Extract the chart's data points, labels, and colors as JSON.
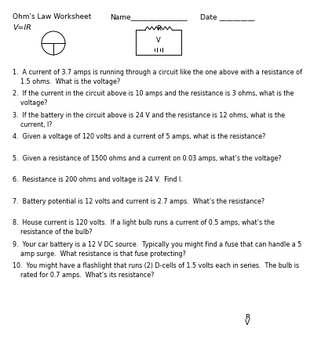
{
  "title": "Ohm's Law Worksheet",
  "name_label": "Name________________",
  "date_label": "Date __________",
  "formula": "V=IR",
  "bg_color": "#ffffff",
  "text_color": "#000000",
  "questions": [
    "1.  A current of 3.7 amps is running through a circuit like the one above with a resistance of\n    1.5 ohms.  What is the voltage?",
    "2.  If the current in the circuit above is 10 amps and the resistance is 3 ohms, what is the\n    voltage?",
    "3.  If the battery in the circuit above is 24 V and the resistance is 12 ohms, what is the\n    current, I?",
    "4.  Given a voltage of 120 volts and a current of 5 amps, what is the resistance?",
    "5.  Given a resistance of 1500 ohms and a current on 0.03 amps, what’s the voltage?",
    "6.  Resistance is 200 ohms and voltage is 24 V.  Find I.",
    "7.  Battery potential is 12 volts and current is 2.7 amps.  What’s the resistance?",
    "8.  House current is 120 volts.  If a light bulb runs a current of 0.5 amps, what’s the\n    resistance of the bulb?",
    "9.  Your car battery is a 12 V DC source.  Typically you might find a fuse that can handle a 5\n    amp surge.  What resistance is that fuse protecting?",
    "10.  You might have a flashlight that runs (2) D-cells of 1.5 volts each in series.  The bulb is\n    rated for 0.7 amps.  What’s its resistance?"
  ],
  "q_font_size": 5.8,
  "header_font_size": 6.5,
  "formula_font_size": 6.8
}
